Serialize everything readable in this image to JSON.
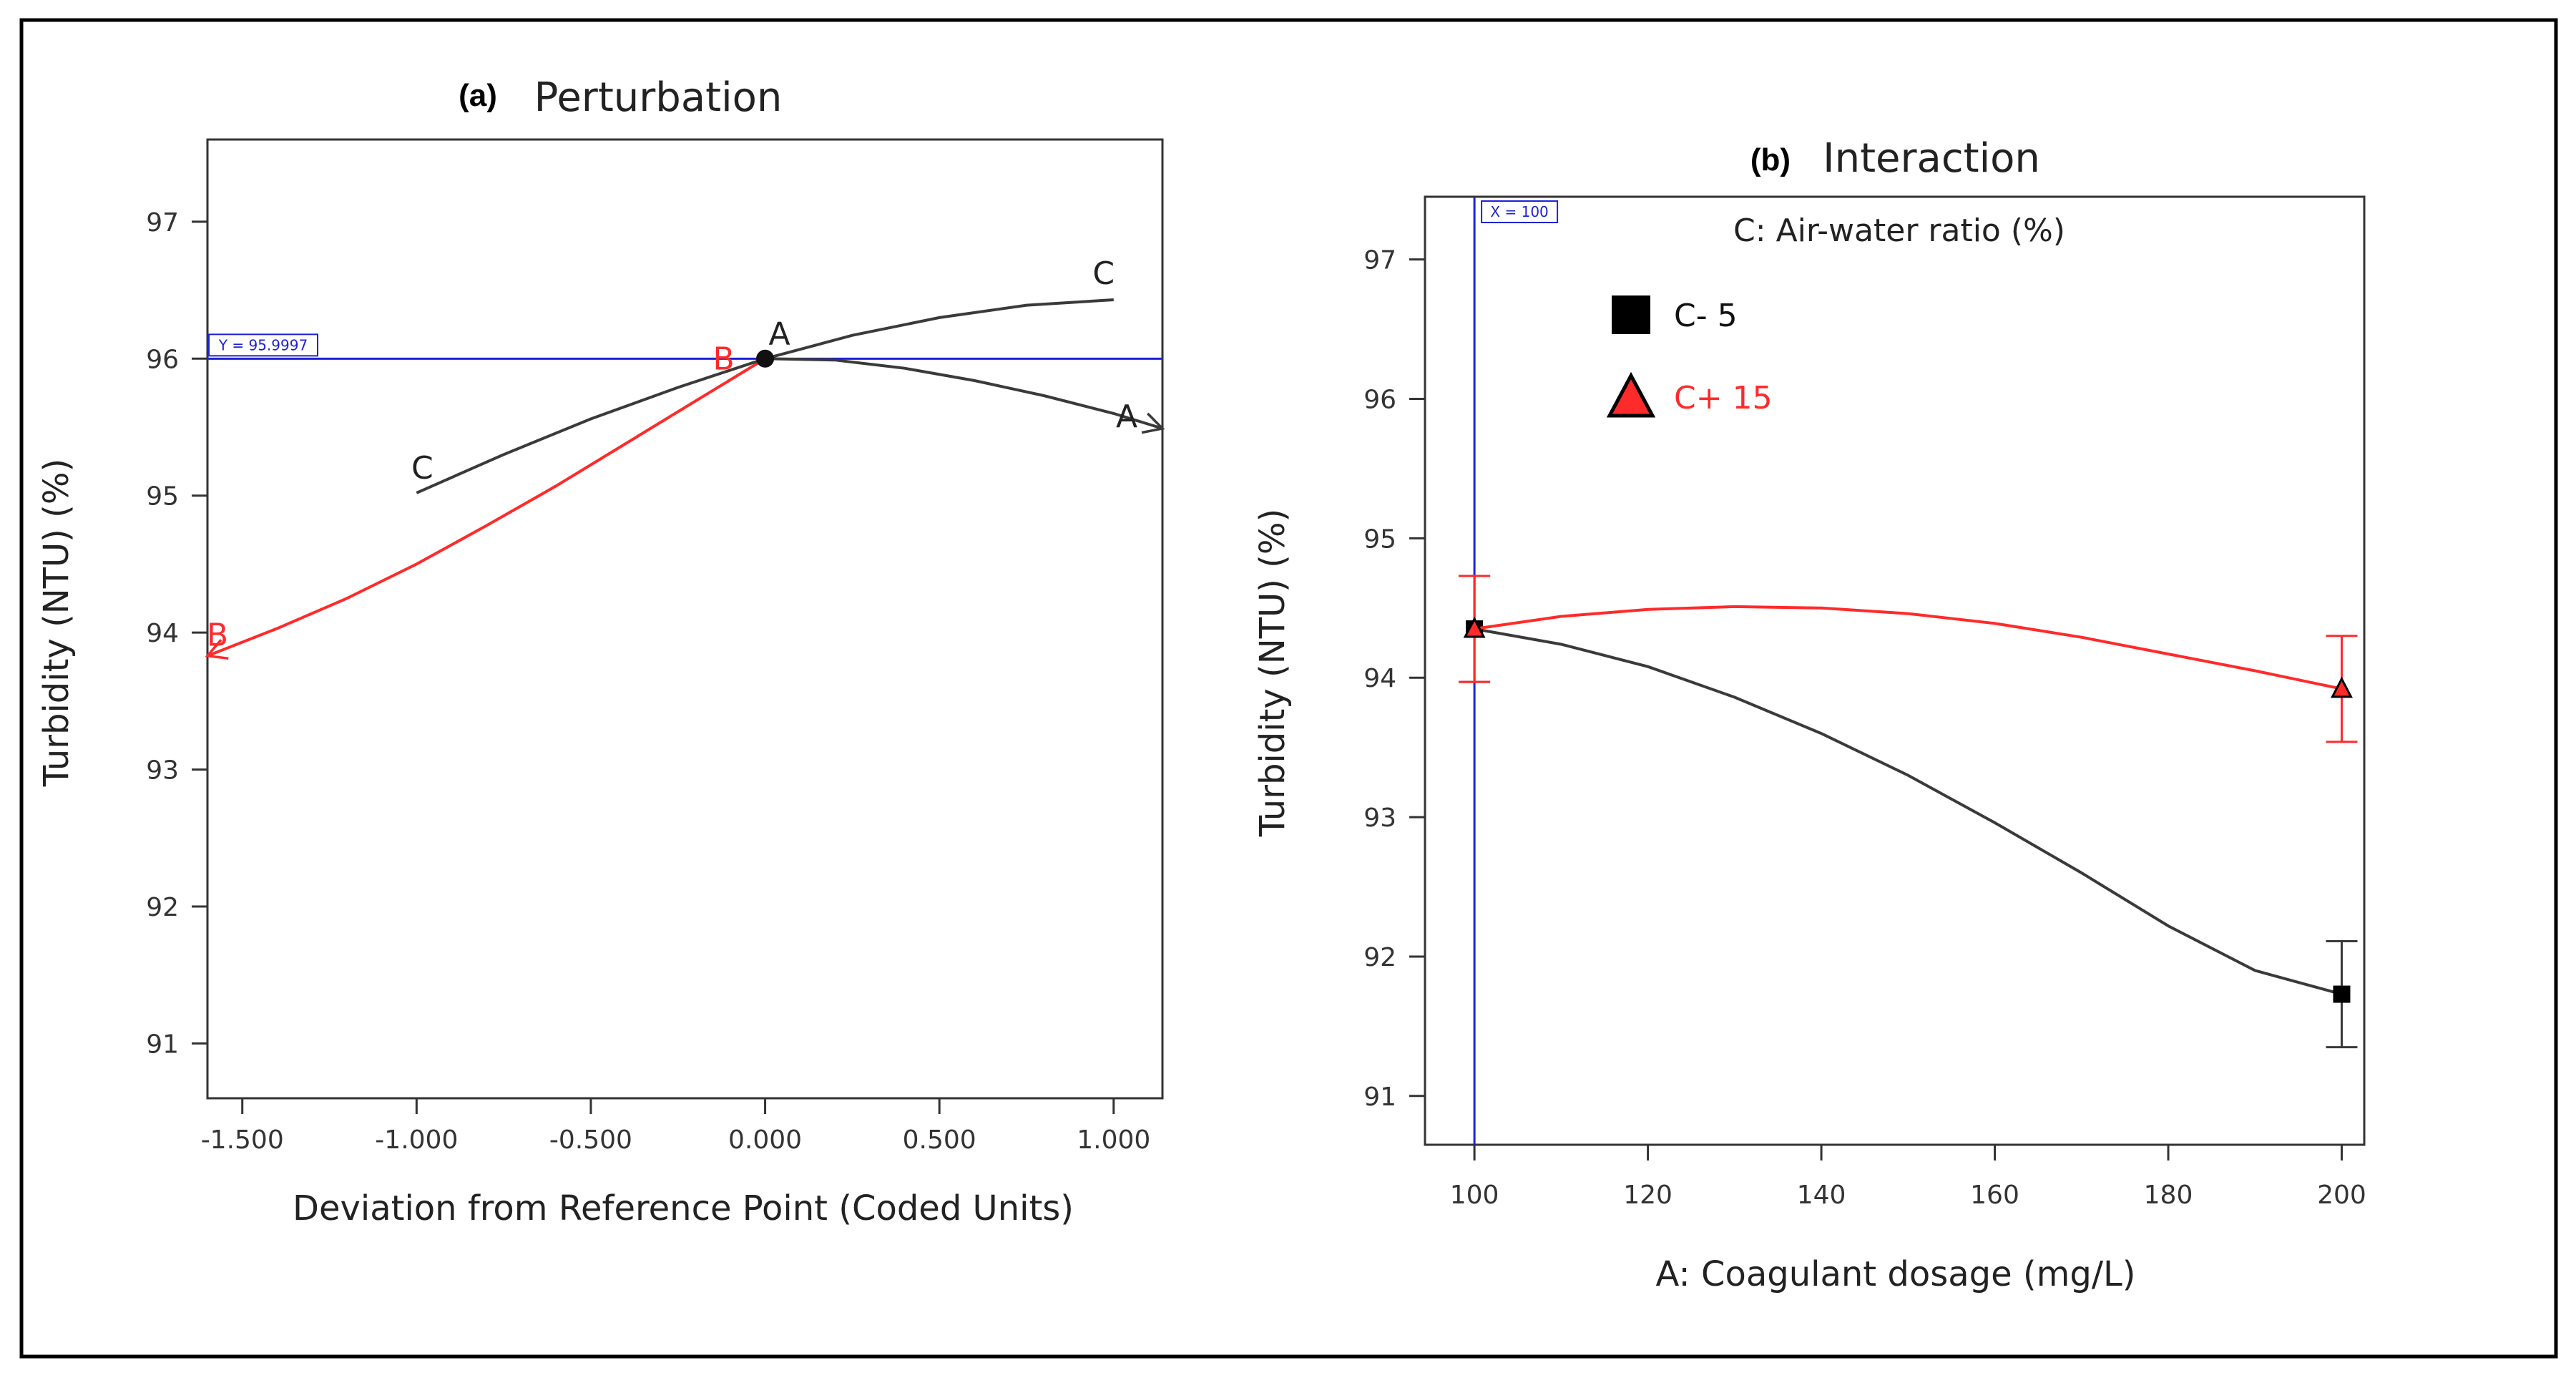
{
  "colors": {
    "border": "#000000",
    "axis": "#333333",
    "series_dark": "#3a3a3a",
    "series_red": "#ff2a2a",
    "reference_blue": "#1e22d6",
    "label_red": "#ff2a2a"
  },
  "chart_data": [
    {
      "type": "line",
      "panel_tag": "(a)",
      "title": "Perturbation",
      "xlabel": "Deviation from Reference Point (Coded Units)",
      "ylabel": "Turbidity (NTU) (%)",
      "xlim": [
        -1.6,
        1.14
      ],
      "ylim": [
        90.6,
        97.6
      ],
      "xticks": [
        -1.5,
        -1.0,
        -0.5,
        0.0,
        0.5,
        1.0
      ],
      "xtick_labels": [
        "-1.500",
        "-1.000",
        "-0.500",
        "0.000",
        "0.500",
        "1.000"
      ],
      "yticks": [
        91,
        92,
        93,
        94,
        95,
        96,
        97
      ],
      "ytick_labels": [
        "91",
        "92",
        "93",
        "94",
        "95",
        "96",
        "97"
      ],
      "reference_line": {
        "y": 95.9997,
        "label": "Y = 95.9997"
      },
      "reference_point": {
        "x": 0.0,
        "y": 96.0
      },
      "series": [
        {
          "name": "A",
          "color_key": "series_dark",
          "x": [
            0.0,
            0.2,
            0.4,
            0.6,
            0.8,
            1.0,
            1.14
          ],
          "y": [
            96.0,
            95.99,
            95.93,
            95.84,
            95.73,
            95.6,
            95.49
          ],
          "label_start": "A",
          "label_end": "A",
          "end_arrow": true
        },
        {
          "name": "B",
          "color_key": "series_red",
          "x": [
            -1.6,
            -1.4,
            -1.2,
            -1.0,
            -0.8,
            -0.6,
            -0.4,
            -0.2,
            0.0
          ],
          "y": [
            93.83,
            94.03,
            94.25,
            94.5,
            94.78,
            95.07,
            95.38,
            95.69,
            96.0
          ],
          "label_start": "B",
          "label_end": "B",
          "start_arrow": true
        },
        {
          "name": "C",
          "color_key": "series_dark",
          "x": [
            -1.0,
            -0.75,
            -0.5,
            -0.25,
            0.0,
            0.25,
            0.5,
            0.75,
            1.0
          ],
          "y": [
            95.02,
            95.3,
            95.56,
            95.79,
            96.0,
            96.17,
            96.3,
            96.39,
            96.43
          ],
          "label_start": "C",
          "label_end": "C"
        }
      ]
    },
    {
      "type": "line",
      "panel_tag": "(b)",
      "title": "Interaction",
      "legend_title": "C: Air-water ratio (%)",
      "xlabel": "A: Coagulant dosage (mg/L)",
      "ylabel": "Turbidity (NTU) (%)",
      "xlim": [
        94.3,
        202.6
      ],
      "ylim": [
        90.65,
        97.45
      ],
      "xticks": [
        100,
        120,
        140,
        160,
        180,
        200
      ],
      "xtick_labels": [
        "100",
        "120",
        "140",
        "160",
        "180",
        "200"
      ],
      "yticks": [
        91,
        92,
        93,
        94,
        95,
        96,
        97
      ],
      "ytick_labels": [
        "91",
        "92",
        "93",
        "94",
        "95",
        "96",
        "97"
      ],
      "reference_line": {
        "x": 100,
        "label": "X = 100"
      },
      "series": [
        {
          "name": "C- 5",
          "legend_label": "C- 5",
          "marker": "square",
          "color_key": "series_dark",
          "curve_x": [
            100,
            110,
            120,
            130,
            140,
            150,
            160,
            170,
            180,
            190,
            200
          ],
          "curve_y": [
            94.35,
            94.24,
            94.08,
            93.86,
            93.6,
            93.3,
            92.96,
            92.6,
            92.22,
            91.9,
            91.73
          ],
          "points_x": [
            100,
            200
          ],
          "points_y": [
            94.35,
            91.73
          ],
          "error_low": [
            93.97,
            91.35
          ],
          "error_high": [
            94.73,
            92.11
          ]
        },
        {
          "name": "C+ 15",
          "legend_label": "C+ 15",
          "marker": "triangle",
          "color_key": "series_red",
          "curve_x": [
            100,
            110,
            120,
            130,
            140,
            150,
            160,
            170,
            180,
            190,
            200
          ],
          "curve_y": [
            94.35,
            94.44,
            94.49,
            94.51,
            94.5,
            94.46,
            94.39,
            94.29,
            94.17,
            94.05,
            93.92
          ],
          "points_x": [
            100,
            200
          ],
          "points_y": [
            94.35,
            93.92
          ],
          "error_low": [
            93.97,
            93.54
          ],
          "error_high": [
            94.73,
            94.3
          ]
        }
      ]
    }
  ]
}
